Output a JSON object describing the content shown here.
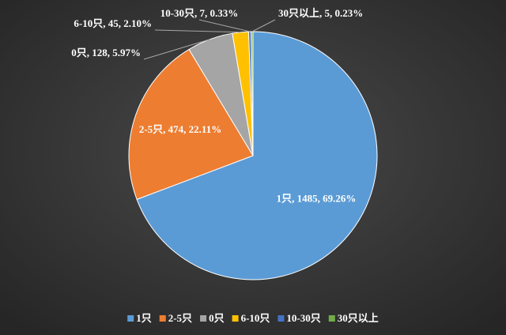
{
  "chart_data": {
    "type": "pie",
    "categories": [
      "1只",
      "2-5只",
      "0只",
      "6-10只",
      "10-30只",
      "30只以上"
    ],
    "values": [
      1485,
      474,
      128,
      45,
      7,
      5
    ],
    "value_labels": [
      "1只, 1485, 69.26%",
      "2-5只, 474, 22.11%",
      "0只, 128, 5.97%",
      "6-10只, 45, 2.10%",
      "10-30只, 7, 0.33%",
      "30只以上, 5, 0.23%"
    ],
    "colors": [
      "#5b9bd5",
      "#ed7d31",
      "#a5a5a5",
      "#ffc000",
      "#4472c4",
      "#70ad47"
    ],
    "legend": "bottom"
  }
}
